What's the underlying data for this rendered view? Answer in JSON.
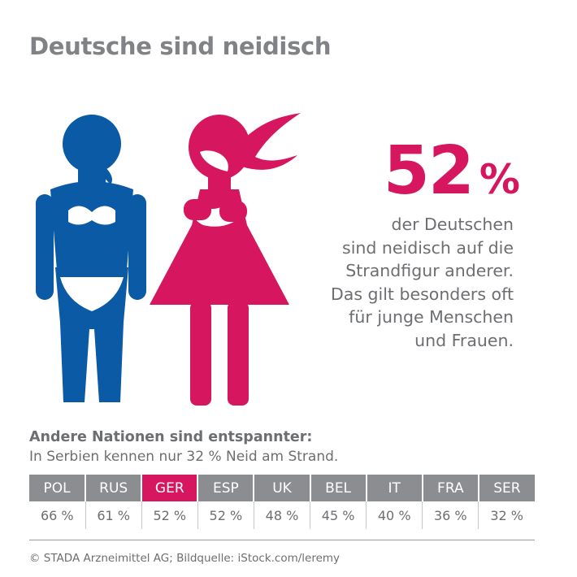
{
  "title": "Deutsche sind neidisch",
  "highlight": {
    "value": "52",
    "unit": "%",
    "description": [
      "der Deutschen",
      "sind neidisch auf die",
      "Strandfigur anderer.",
      "Das gilt besonders oft",
      "für junge Menschen",
      "und Frauen."
    ]
  },
  "icons": {
    "left": "blue-bikini-woman-icon",
    "right": "pink-envious-woman-icon"
  },
  "colors": {
    "blue": "#0a5aa6",
    "magenta": "#d6165e",
    "gray_header": "#8c8d90",
    "title_gray": "#808285"
  },
  "nations": {
    "heading": "Andere Nationen sind entspannter:",
    "subheading": "In Serbien kennen nur 32 % Neid am Strand.",
    "highlighted": "GER"
  },
  "chart_data": {
    "type": "table",
    "categories": [
      "POL",
      "RUS",
      "GER",
      "ESP",
      "UK",
      "BEL",
      "IT",
      "FRA",
      "SER"
    ],
    "values": [
      66,
      61,
      52,
      52,
      48,
      45,
      40,
      36,
      32
    ],
    "labels": [
      "66 %",
      "61 %",
      "52 %",
      "52 %",
      "48 %",
      "45 %",
      "40 %",
      "36 %",
      "32 %"
    ],
    "unit": "%"
  },
  "footer": "© STADA Arzneimittel AG; Bildquelle: iStock.com/leremy"
}
